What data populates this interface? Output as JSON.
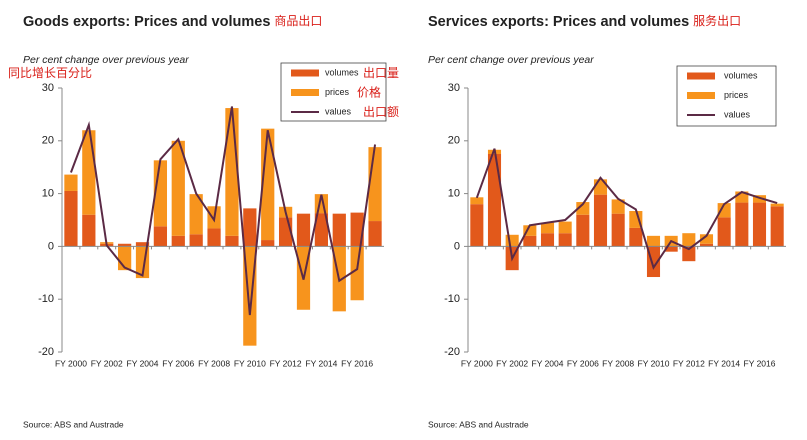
{
  "chart_data": [
    {
      "type": "bar",
      "title": "Goods exports: Prices and volumes",
      "title_cn": "商品出口",
      "subtitle": "Per cent change over previous year",
      "y_label_cn": "同比增长百分比",
      "categories": [
        "FY 2000",
        null,
        "FY 2002",
        null,
        "FY 2004",
        null,
        "FY 2006",
        null,
        "FY 2008",
        null,
        "FY 2010",
        null,
        "FY 2012",
        null,
        "FY 2014",
        null,
        "FY 2016",
        null
      ],
      "series": [
        {
          "name": "volumes",
          "name_cn": "出口量",
          "type": "bar",
          "color": "#e2591b",
          "values": [
            10.5,
            6,
            0.5,
            0.5,
            0.8,
            3.8,
            2,
            2.3,
            3.4,
            2,
            7.2,
            1.2,
            5.5,
            6.2,
            6.3,
            6.2,
            6.4,
            4.8
          ]
        },
        {
          "name": "prices",
          "name_cn": "价格",
          "type": "bar",
          "color": "#f7941d",
          "values": [
            3.1,
            16,
            0.3,
            -4.5,
            -6,
            12.5,
            18,
            7.6,
            4.2,
            24.2,
            -18.8,
            21.1,
            2,
            -12,
            3.6,
            -12.3,
            -10.2,
            14
          ]
        },
        {
          "name": "values",
          "name_cn": "出口额",
          "type": "line",
          "color": "#5b2a45",
          "values": [
            14,
            23,
            0.2,
            -4,
            -5.5,
            16.5,
            20.3,
            10,
            5,
            26.5,
            -13,
            22,
            6.5,
            -6.3,
            9.8,
            -6.5,
            -4.3,
            19.3
          ]
        }
      ],
      "ylim": [
        -20,
        30
      ],
      "yticks": [
        -20,
        -10,
        0,
        10,
        20,
        30
      ],
      "legend": "top right",
      "source": "Source: ABS and Austrade"
    },
    {
      "type": "bar",
      "title": "Services exports: Prices and volumes",
      "title_cn": "服务出口",
      "subtitle": "Per cent change over previous year",
      "categories": [
        "FY 2000",
        null,
        "FY 2002",
        null,
        "FY 2004",
        null,
        "FY 2006",
        null,
        "FY 2008",
        null,
        "FY 2010",
        null,
        "FY 2012",
        null,
        "FY 2014",
        null,
        "FY 2016",
        null
      ],
      "series": [
        {
          "name": "volumes",
          "type": "bar",
          "color": "#e2591b",
          "values": [
            8,
            17.5,
            -4.5,
            2,
            2.5,
            2.5,
            6,
            9.8,
            6.2,
            3.5,
            -5.8,
            -1,
            -2.8,
            0.5,
            5.5,
            8.3,
            8.3,
            7.6
          ]
        },
        {
          "name": "prices",
          "type": "bar",
          "color": "#f7941d",
          "values": [
            1.3,
            0.8,
            2.2,
            2,
            2,
            2.2,
            2.4,
            2.9,
            2.7,
            3.2,
            2,
            2,
            2.5,
            1.8,
            2.7,
            2.1,
            1.4,
            0.5
          ]
        },
        {
          "name": "values",
          "type": "line",
          "color": "#5b2a45",
          "values": [
            9.2,
            18.5,
            -2.3,
            4,
            4.5,
            5,
            8,
            13,
            9,
            7,
            -4,
            1,
            -0.5,
            2,
            8,
            10.3,
            9.2,
            8.2
          ]
        }
      ],
      "ylim": [
        -20,
        30
      ],
      "yticks": [
        -20,
        -10,
        0,
        10,
        20,
        30
      ],
      "legend": "top right",
      "source": "Source: ABS and Austrade"
    }
  ]
}
